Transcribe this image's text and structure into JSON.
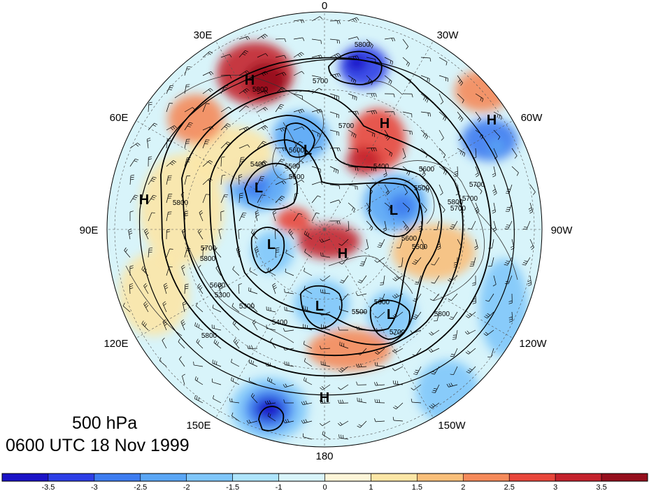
{
  "map": {
    "level": "500 hPa",
    "valid_time": "0600 UTC 18 Nov 1999",
    "longitude_labels": [
      {
        "id": "lon-0",
        "text": "0"
      },
      {
        "id": "lon-30w",
        "text": "30W"
      },
      {
        "id": "lon-60w",
        "text": "60W"
      },
      {
        "id": "lon-90w",
        "text": "90W"
      },
      {
        "id": "lon-120w",
        "text": "120W"
      },
      {
        "id": "lon-150w",
        "text": "150W"
      },
      {
        "id": "lon-180",
        "text": "180"
      },
      {
        "id": "lon-150e",
        "text": "150E"
      },
      {
        "id": "lon-120e",
        "text": "120E"
      },
      {
        "id": "lon-90e",
        "text": "90E"
      },
      {
        "id": "lon-60e",
        "text": "60E"
      },
      {
        "id": "lon-30e",
        "text": "30E"
      }
    ],
    "pressure_centers": [
      "H",
      "H",
      "H",
      "H",
      "H",
      "H",
      "L",
      "L",
      "L",
      "L",
      "L",
      "L"
    ],
    "contour_labels": [
      "5800",
      "5800",
      "5700",
      "5700",
      "5600",
      "5500",
      "5400",
      "5400",
      "5500",
      "5600",
      "5700",
      "5800",
      "5700",
      "5600",
      "5500",
      "5800",
      "5700",
      "5800",
      "5600",
      "5300",
      "5800",
      "5700",
      "5600",
      "5500",
      "5400",
      "5300",
      "5800",
      "5700",
      "5600"
    ],
    "colors": {
      "ocean_background": "#d8f4fa",
      "land_lines": "#222222",
      "height_contours": "#000000",
      "wind_barbs": "#000000"
    }
  },
  "colorbar": {
    "tick_labels": [
      "-3.5",
      "-3",
      "-2.5",
      "-2",
      "-1.5",
      "-1",
      "0",
      "1",
      "1.5",
      "2",
      "2.5",
      "3",
      "3.5"
    ],
    "colors": [
      "#1a12c6",
      "#2c3ee6",
      "#3d7cf0",
      "#5aa6f5",
      "#7fc6fa",
      "#aee4fc",
      "#d8f4fa",
      "#fdf5d8",
      "#fce6a6",
      "#f9bf7a",
      "#f58a5a",
      "#e8463b",
      "#c4222c",
      "#950f1d"
    ]
  }
}
